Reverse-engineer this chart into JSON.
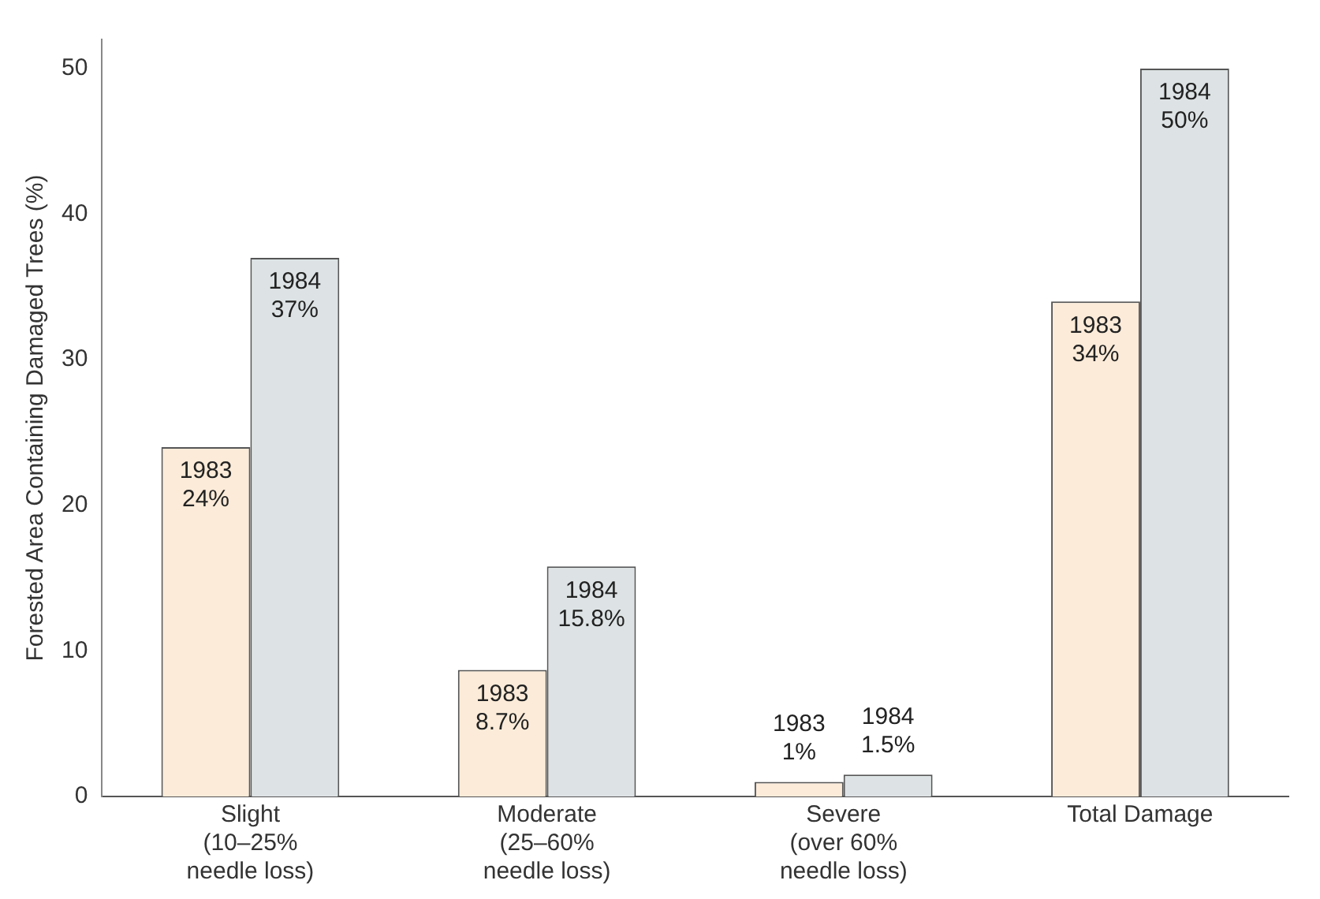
{
  "chart_data": {
    "type": "bar",
    "ylabel": "Forested Area Containing Damaged Trees (%)",
    "categories": [
      "Slight\n(10–25%\nneedle loss)",
      "Moderate\n(25–60%\nneedle loss)",
      "Severe\n(over 60%\nneedle loss)",
      "Total Damage"
    ],
    "series": [
      {
        "name": "1983",
        "color": "#fbebd8",
        "values": [
          24,
          8.7,
          1,
          34
        ],
        "value_labels": [
          "24%",
          "8.7%",
          "1%",
          "34%"
        ]
      },
      {
        "name": "1984",
        "color": "#dde3e4",
        "values": [
          37,
          15.8,
          1.5,
          50
        ],
        "value_labels": [
          "37%",
          "15.8%",
          "1.5%",
          "50%"
        ]
      }
    ],
    "ylim": [
      0,
      52
    ],
    "yticks": [
      0,
      10,
      20,
      30,
      40,
      50
    ],
    "grid": false,
    "legend": false
  }
}
